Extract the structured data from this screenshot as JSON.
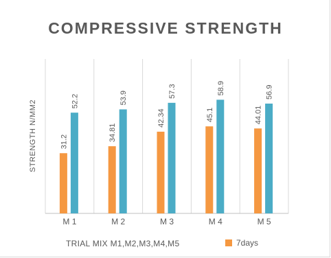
{
  "chart_data": {
    "type": "bar",
    "title": "COMPRESSIVE STRENGTH",
    "ylabel": "STRENGTH N/MM2",
    "xlabel": "TRIAL MIX M1,M2,M3,M4,M5",
    "categories": [
      "M 1",
      "M 2",
      "M 3",
      "M 4",
      "M 5"
    ],
    "series": [
      {
        "name": "7days",
        "color": "#f59841",
        "values": [
          31.2,
          34.81,
          42.34,
          45.1,
          44.01
        ],
        "labels": [
          "31.2",
          "34.81",
          "42.34",
          "45.1",
          "44.01"
        ]
      },
      {
        "color": "#4bacc6",
        "values": [
          52.2,
          53.9,
          57.3,
          58.9,
          56.9
        ],
        "labels": [
          "52.2",
          "53.9",
          "57.3",
          "58.9",
          "56.9"
        ]
      }
    ],
    "ylim": [
      0,
      80
    ],
    "grid": "vertical",
    "legend": "bottom-right"
  }
}
